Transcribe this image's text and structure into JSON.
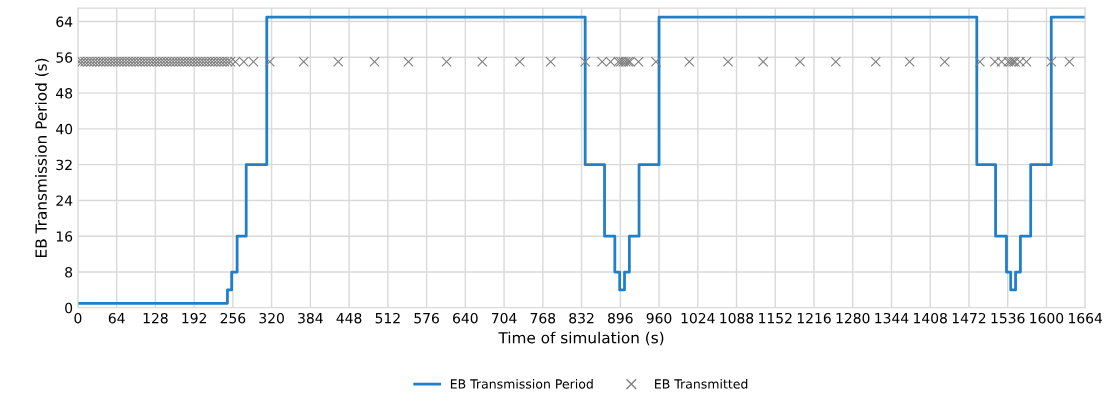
{
  "chart_data": {
    "type": "step",
    "xlabel": "Time of simulation (s)",
    "ylabel": "EB Transmission Period (s)",
    "xlim": [
      0,
      1664
    ],
    "xticks": [
      0,
      64,
      128,
      192,
      256,
      320,
      384,
      448,
      512,
      576,
      640,
      704,
      768,
      832,
      896,
      960,
      1024,
      1088,
      1152,
      1216,
      1280,
      1344,
      1408,
      1472,
      1536,
      1600,
      1664
    ],
    "ylim": [
      0,
      67
    ],
    "yticks": [
      0,
      8,
      16,
      24,
      32,
      40,
      48,
      56,
      64
    ],
    "grid": true,
    "legend": "bottom",
    "series": [
      {
        "name": "EB Transmission Period",
        "color": "#1f7fc8",
        "marker": "none",
        "x": [
          2,
          247,
          254,
          263,
          278,
          312,
          838,
          870,
          887,
          895,
          903,
          911,
          927,
          960,
          1485,
          1516,
          1534,
          1541,
          1549,
          1557,
          1574,
          1608,
          1664
        ],
        "values": [
          1,
          4,
          8,
          16,
          32,
          65,
          32,
          16,
          8,
          4,
          8,
          16,
          32,
          65,
          32,
          16,
          8,
          4,
          8,
          16,
          32,
          65,
          65
        ]
      },
      {
        "name": "EB Transmitted",
        "type": "scatter",
        "color": "#7f7f7f",
        "marker": "cross",
        "x": [
          2,
          7,
          12,
          17,
          22,
          27,
          32,
          37,
          42,
          47,
          52,
          57,
          62,
          67,
          72,
          77,
          82,
          87,
          92,
          97,
          102,
          107,
          112,
          117,
          122,
          127,
          132,
          137,
          142,
          147,
          152,
          157,
          162,
          167,
          172,
          177,
          182,
          187,
          192,
          197,
          202,
          207,
          212,
          217,
          222,
          227,
          232,
          237,
          242,
          247,
          252,
          260,
          274,
          290,
          317,
          373,
          430,
          490,
          546,
          609,
          668,
          730,
          781,
          838,
          866,
          880,
          893,
          897,
          901,
          905,
          909,
          912,
          926,
          955,
          1010,
          1074,
          1132,
          1193,
          1252,
          1318,
          1374,
          1432,
          1490,
          1515,
          1526,
          1537,
          1541,
          1545,
          1548,
          1556,
          1567,
          1608,
          1638
        ],
        "values": [
          55,
          55,
          55,
          55,
          55,
          55,
          55,
          55,
          55,
          55,
          55,
          55,
          55,
          55,
          55,
          55,
          55,
          55,
          55,
          55,
          55,
          55,
          55,
          55,
          55,
          55,
          55,
          55,
          55,
          55,
          55,
          55,
          55,
          55,
          55,
          55,
          55,
          55,
          55,
          55,
          55,
          55,
          55,
          55,
          55,
          55,
          55,
          55,
          55,
          55,
          55,
          55,
          55,
          55,
          55,
          55,
          55,
          55,
          55,
          55,
          55,
          55,
          55,
          55,
          55,
          55,
          55,
          55,
          55,
          55,
          55,
          55,
          55,
          55,
          55,
          55,
          55,
          55,
          55,
          55,
          55,
          55,
          55,
          55,
          55,
          55,
          55,
          55,
          55,
          55,
          55,
          55,
          55
        ]
      }
    ]
  }
}
